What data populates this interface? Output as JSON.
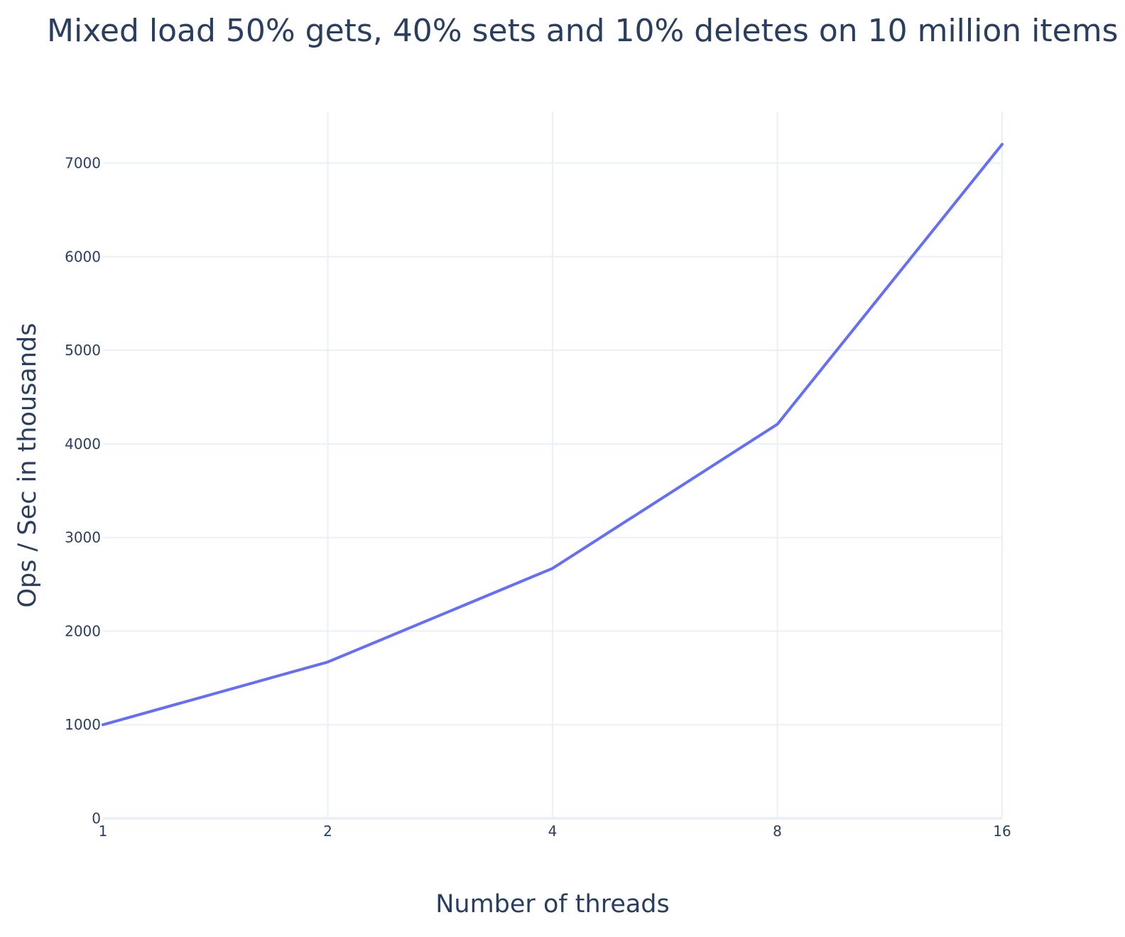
{
  "chart_data": {
    "type": "line",
    "title": "Mixed load 50% gets, 40% sets and 10% deletes on 10 million items",
    "xlabel": "Number of threads",
    "ylabel": "Ops / Sec in thousands",
    "x": [
      "1",
      "2",
      "4",
      "8",
      "16"
    ],
    "x_ticks": [
      "1",
      "2",
      "4",
      "8",
      "16"
    ],
    "y_ticks": [
      "0",
      "1000",
      "2000",
      "3000",
      "4000",
      "5000",
      "6000",
      "7000"
    ],
    "ylim": [
      0,
      7550
    ],
    "grid": true,
    "series": [
      {
        "values": [
          1000,
          1670,
          2670,
          4210,
          7200
        ],
        "color": "#636efa"
      }
    ]
  }
}
